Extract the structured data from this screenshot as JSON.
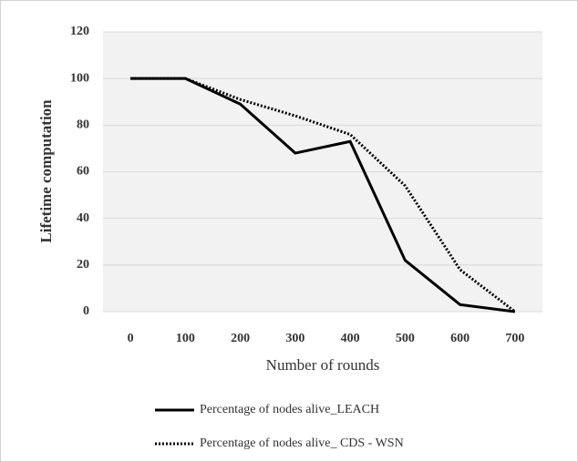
{
  "chart_data": {
    "type": "line",
    "y_label": "Lifetime computation",
    "x_label": "Number of rounds",
    "categories": [
      "0",
      "100",
      "200",
      "300",
      "400",
      "500",
      "600",
      "700"
    ],
    "series": [
      {
        "name": "Percentage of nodes alive_LEACH",
        "color": "#000000",
        "dash": "solid",
        "values": [
          100,
          100,
          89,
          68,
          73,
          22,
          3,
          0
        ]
      },
      {
        "name": "Percentage of nodes alive_ CDS - WSN",
        "color": "#000000",
        "dash": "dotted",
        "values": [
          100,
          100,
          91,
          84,
          76,
          54,
          18,
          0
        ]
      }
    ],
    "ylim": [
      0,
      120
    ],
    "yticks": [
      0,
      20,
      40,
      60,
      80,
      100,
      120
    ],
    "grid": true
  }
}
